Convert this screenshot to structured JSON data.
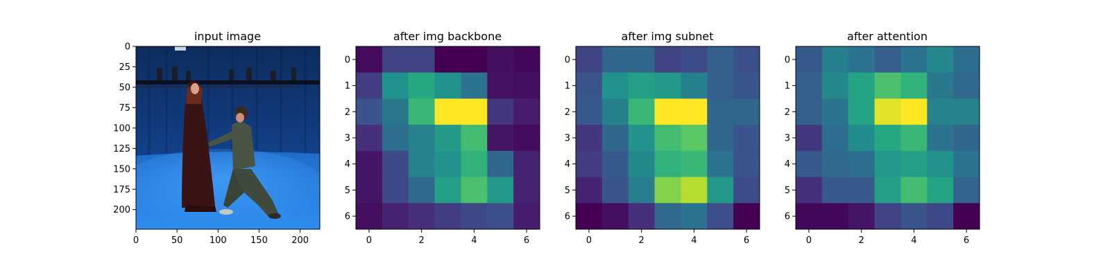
{
  "chart_data": [
    {
      "type": "image",
      "title": "input image",
      "xlim": [
        0,
        224
      ],
      "ylim": [
        224,
        0
      ],
      "xticks": [
        0,
        50,
        100,
        150,
        200
      ],
      "yticks": [
        0,
        25,
        50,
        75,
        100,
        125,
        150,
        175,
        200
      ],
      "xtick_labels": [
        "0",
        "50",
        "100",
        "150",
        "200"
      ],
      "ytick_labels": [
        "0",
        "25",
        "50",
        "75",
        "100",
        "125",
        "150",
        "175",
        "200"
      ],
      "content": "photo of a woman in a long dark dress and a kneeling man holding her hand on a blue studio stage"
    },
    {
      "type": "heatmap",
      "title": "after img backbone",
      "colormap": "viridis",
      "xticks": [
        0,
        2,
        4,
        6
      ],
      "yticks": [
        0,
        1,
        2,
        3,
        4,
        5,
        6
      ],
      "xtick_labels": [
        "0",
        "2",
        "4",
        "6"
      ],
      "ytick_labels": [
        "0",
        "1",
        "2",
        "3",
        "4",
        "5",
        "6"
      ],
      "values": [
        [
          0.05,
          0.22,
          0.22,
          0.02,
          0.02,
          0.06,
          0.04
        ],
        [
          0.2,
          0.52,
          0.62,
          0.52,
          0.4,
          0.07,
          0.06
        ],
        [
          0.28,
          0.42,
          0.68,
          1.0,
          1.0,
          0.18,
          0.1
        ],
        [
          0.16,
          0.38,
          0.46,
          0.56,
          0.7,
          0.08,
          0.05
        ],
        [
          0.08,
          0.24,
          0.46,
          0.52,
          0.66,
          0.35,
          0.12
        ],
        [
          0.08,
          0.24,
          0.36,
          0.58,
          0.72,
          0.55,
          0.12
        ],
        [
          0.06,
          0.12,
          0.16,
          0.2,
          0.24,
          0.26,
          0.1
        ]
      ]
    },
    {
      "type": "heatmap",
      "title": "after img subnet",
      "colormap": "viridis",
      "xticks": [
        0,
        2,
        4,
        6
      ],
      "yticks": [
        0,
        1,
        2,
        3,
        4,
        5,
        6
      ],
      "xtick_labels": [
        "0",
        "2",
        "4",
        "6"
      ],
      "ytick_labels": [
        "0",
        "1",
        "2",
        "3",
        "4",
        "5",
        "6"
      ],
      "values": [
        [
          0.22,
          0.35,
          0.35,
          0.22,
          0.25,
          0.32,
          0.26
        ],
        [
          0.28,
          0.52,
          0.58,
          0.55,
          0.45,
          0.32,
          0.28
        ],
        [
          0.3,
          0.45,
          0.68,
          1.0,
          1.0,
          0.35,
          0.35
        ],
        [
          0.18,
          0.35,
          0.52,
          0.7,
          0.75,
          0.35,
          0.28
        ],
        [
          0.2,
          0.3,
          0.48,
          0.66,
          0.68,
          0.4,
          0.28
        ],
        [
          0.12,
          0.28,
          0.44,
          0.82,
          0.9,
          0.55,
          0.25
        ],
        [
          0.02,
          0.06,
          0.16,
          0.36,
          0.4,
          0.26,
          0.02
        ]
      ]
    },
    {
      "type": "heatmap",
      "title": "after attention",
      "colormap": "viridis",
      "xticks": [
        0,
        2,
        4,
        6
      ],
      "yticks": [
        0,
        1,
        2,
        3,
        4,
        5,
        6
      ],
      "xtick_labels": [
        "0",
        "2",
        "4",
        "6"
      ],
      "ytick_labels": [
        "0",
        "1",
        "2",
        "3",
        "4",
        "5",
        "6"
      ],
      "values": [
        [
          0.3,
          0.45,
          0.4,
          0.32,
          0.4,
          0.48,
          0.38
        ],
        [
          0.32,
          0.48,
          0.6,
          0.72,
          0.66,
          0.42,
          0.36
        ],
        [
          0.32,
          0.4,
          0.6,
          0.96,
          1.0,
          0.46,
          0.46
        ],
        [
          0.18,
          0.38,
          0.5,
          0.62,
          0.68,
          0.4,
          0.35
        ],
        [
          0.3,
          0.36,
          0.38,
          0.55,
          0.58,
          0.52,
          0.4
        ],
        [
          0.16,
          0.3,
          0.3,
          0.58,
          0.7,
          0.6,
          0.34
        ],
        [
          0.04,
          0.04,
          0.08,
          0.22,
          0.28,
          0.24,
          0.02
        ]
      ]
    }
  ]
}
